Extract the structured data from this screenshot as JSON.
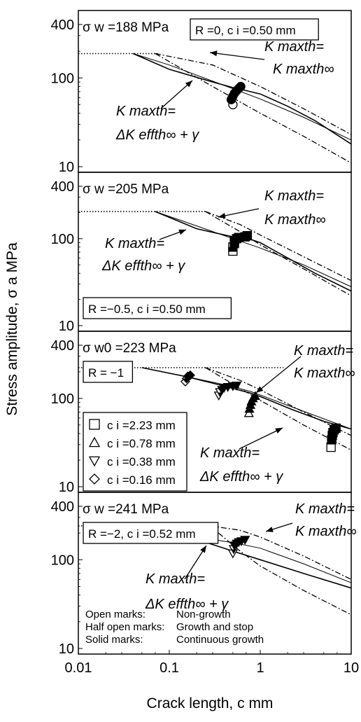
{
  "chart_data": {
    "type": "line",
    "xlabel": "Crack length,  c   mm",
    "ylabel": "Stress amplitude,  σ a   MPa",
    "xscale": "log",
    "yscale": "log",
    "xlim": [
      0.01,
      10
    ],
    "ylim": [
      10,
      400
    ],
    "x_ticks": [
      "0.01",
      "0.1",
      "1",
      "10"
    ],
    "y_ticks": [
      "10",
      "100",
      "400"
    ],
    "line_styles": {
      "solid": "#000000",
      "dash_dot": "#000000",
      "dotted": "#000000"
    },
    "panels": [
      {
        "sigma_w_label": "σ w =188 MPa",
        "condition_label": "R =0, c i =0.50 mm",
        "condition_box": "top-right",
        "annotations": [
          {
            "lines": [
              "K maxth=",
              "K maxth∞"
            ]
          },
          {
            "lines": [
              "K maxth=",
              "ΔK effth∞ + γ"
            ]
          }
        ],
        "sigma_w": 188,
        "curves": {
          "fatigue_limit_dotted": {
            "x": [
              0.01,
              0.075
            ],
            "y": [
              188,
              188
            ]
          },
          "solid": {
            "x": [
              0.04,
              0.1,
              0.3,
              0.5,
              0.7,
              1.0,
              2.0,
              4.0,
              10.0
            ],
            "y": [
              188,
              125,
              90,
              78,
              72,
              66,
              48,
              33,
              18
            ]
          },
          "thin_solid": {
            "x": [
              0.04,
              0.1,
              0.3,
              1.0,
              3.0,
              10.0
            ],
            "y": [
              188,
              140,
              92,
              58,
              36,
              20
            ]
          },
          "kmaxth_inf_dash": {
            "x": [
              0.07,
              0.3,
              1.0,
              3.0,
              10.0
            ],
            "y": [
              188,
              140,
              80,
              45,
              23
            ]
          },
          "dkeff_dashdot": {
            "x": [
              0.07,
              0.3,
              1.0,
              3.0,
              10.0
            ],
            "y": [
              188,
              80,
              40,
              22,
              11
            ]
          }
        },
        "markers": [
          {
            "shape": "circle",
            "fill": "open",
            "x": 0.5,
            "y": 50
          },
          {
            "shape": "circle",
            "fill": "solid",
            "x": 0.48,
            "y": 57
          },
          {
            "shape": "circle",
            "fill": "solid",
            "x": 0.5,
            "y": 62
          },
          {
            "shape": "circle",
            "fill": "solid",
            "x": 0.52,
            "y": 67
          },
          {
            "shape": "circle",
            "fill": "solid",
            "x": 0.55,
            "y": 72
          },
          {
            "shape": "circle",
            "fill": "solid",
            "x": 0.58,
            "y": 76
          },
          {
            "shape": "circle",
            "fill": "solid",
            "x": 0.61,
            "y": 80
          }
        ]
      },
      {
        "sigma_w_label": "σ w =205 MPa",
        "condition_label": "R =−0.5, c i =0.50 mm",
        "condition_box": "bottom-left",
        "annotations": [
          {
            "lines": [
              "K maxth=",
              "K maxth∞"
            ]
          },
          {
            "lines": [
              "K maxth=",
              "ΔK effth∞ + γ"
            ]
          }
        ],
        "sigma_w": 205,
        "curves": {
          "fatigue_limit_dotted": {
            "x": [
              0.01,
              0.25
            ],
            "y": [
              205,
              205
            ]
          },
          "solid": {
            "x": [
              0.07,
              0.2,
              0.5,
              0.7,
              1.0,
              2.0,
              4.0,
              10.0
            ],
            "y": [
              205,
              130,
              105,
              102,
              90,
              60,
              40,
              25
            ]
          },
          "thin_solid": {
            "x": [
              0.07,
              0.2,
              0.5,
              1.0,
              3.0,
              10.0
            ],
            "y": [
              205,
              140,
              100,
              78,
              50,
              28
            ]
          },
          "kmaxth_inf_dash": {
            "x": [
              0.25,
              0.6,
              1.0,
              3.0,
              10.0
            ],
            "y": [
              205,
              145,
              110,
              62,
              33
            ]
          },
          "dkeff_dashdot": {
            "x": [
              0.25,
              0.6,
              1.0,
              3.0,
              10.0
            ],
            "y": [
              205,
              120,
              85,
              45,
              22
            ]
          }
        },
        "markers": [
          {
            "shape": "square",
            "fill": "open",
            "x": 0.5,
            "y": 72
          },
          {
            "shape": "square",
            "fill": "half",
            "x": 0.5,
            "y": 80
          },
          {
            "shape": "square",
            "fill": "half",
            "x": 0.52,
            "y": 88
          },
          {
            "shape": "square",
            "fill": "solid",
            "x": 0.52,
            "y": 95
          },
          {
            "shape": "square",
            "fill": "solid",
            "x": 0.55,
            "y": 100
          },
          {
            "shape": "square",
            "fill": "solid",
            "x": 0.58,
            "y": 103
          },
          {
            "shape": "square",
            "fill": "solid",
            "x": 0.68,
            "y": 105
          },
          {
            "shape": "square",
            "fill": "solid",
            "x": 0.72,
            "y": 108
          }
        ]
      },
      {
        "sigma_w_label": "σ w0 =223 MPa",
        "condition_label": "R = −1",
        "condition_box": "top-left",
        "annotations": [
          {
            "lines": [
              "K maxth=",
              "K maxth∞"
            ]
          },
          {
            "lines": [
              "K maxth=",
              "ΔK effth∞ + γ"
            ]
          }
        ],
        "legend": [
          {
            "shape": "square",
            "label": "c i =2.23 mm"
          },
          {
            "shape": "triangle-up",
            "label": "c i =0.78 mm"
          },
          {
            "shape": "triangle-down",
            "label": "c i =0.38 mm"
          },
          {
            "shape": "diamond",
            "label": "c i =0.16 mm"
          }
        ],
        "sigma_w": 223,
        "curves": {
          "fatigue_limit_dotted": {
            "x": [
              0.01,
              1.8
            ],
            "y": [
              223,
              223
            ]
          },
          "solid": {
            "x": [
              0.05,
              0.16,
              0.38,
              0.78,
              1.0,
              2.23,
              5.0,
              10.0
            ],
            "y": [
              223,
              175,
              140,
              115,
              105,
              75,
              55,
              45
            ]
          },
          "thin_solid": {
            "x": [
              0.05,
              0.16,
              0.38,
              0.78,
              2.23,
              10.0
            ],
            "y": [
              223,
              175,
              145,
              120,
              80,
              45
            ]
          },
          "kmaxth_inf_dash": {
            "x": [
              0.25,
              0.6,
              1.0,
              3.0,
              10.0
            ],
            "y": [
              223,
              160,
              125,
              70,
              38
            ]
          },
          "dkeff_dashdot": {
            "x": [
              0.25,
              0.6,
              1.0,
              3.0,
              10.0
            ],
            "y": [
              223,
              130,
              95,
              50,
              26
            ]
          }
        },
        "markers": [
          {
            "shape": "diamond",
            "fill": "open",
            "x": 0.15,
            "y": 155
          },
          {
            "shape": "diamond",
            "fill": "half",
            "x": 0.155,
            "y": 168
          },
          {
            "shape": "diamond",
            "fill": "solid",
            "x": 0.16,
            "y": 178
          },
          {
            "shape": "diamond",
            "fill": "solid",
            "x": 0.17,
            "y": 183
          },
          {
            "shape": "triangle-down",
            "fill": "open",
            "x": 0.35,
            "y": 108
          },
          {
            "shape": "triangle-down",
            "fill": "half",
            "x": 0.36,
            "y": 118
          },
          {
            "shape": "triangle-down",
            "fill": "solid",
            "x": 0.38,
            "y": 125
          },
          {
            "shape": "triangle-down",
            "fill": "solid",
            "x": 0.4,
            "y": 132
          },
          {
            "shape": "triangle-down",
            "fill": "solid",
            "x": 0.44,
            "y": 135
          },
          {
            "shape": "triangle-down",
            "fill": "solid",
            "x": 0.5,
            "y": 138
          },
          {
            "shape": "triangle-down",
            "fill": "solid",
            "x": 0.55,
            "y": 140
          },
          {
            "shape": "triangle-up",
            "fill": "open",
            "x": 0.75,
            "y": 68
          },
          {
            "shape": "triangle-up",
            "fill": "half",
            "x": 0.76,
            "y": 76
          },
          {
            "shape": "triangle-up",
            "fill": "solid",
            "x": 0.78,
            "y": 84
          },
          {
            "shape": "triangle-up",
            "fill": "solid",
            "x": 0.8,
            "y": 92
          },
          {
            "shape": "triangle-up",
            "fill": "solid",
            "x": 0.83,
            "y": 100
          },
          {
            "shape": "triangle-up",
            "fill": "solid",
            "x": 0.88,
            "y": 106
          },
          {
            "shape": "square",
            "fill": "open",
            "x": 6.0,
            "y": 28
          },
          {
            "shape": "square",
            "fill": "half",
            "x": 6.1,
            "y": 34
          },
          {
            "shape": "square",
            "fill": "half",
            "x": 6.2,
            "y": 38
          },
          {
            "shape": "square",
            "fill": "solid",
            "x": 6.3,
            "y": 41
          },
          {
            "shape": "square",
            "fill": "solid",
            "x": 6.5,
            "y": 44
          },
          {
            "shape": "square",
            "fill": "solid",
            "x": 6.8,
            "y": 46
          }
        ]
      },
      {
        "sigma_w_label": "σ w =241 MPa",
        "condition_label": "R =−2, c i =0.52 mm",
        "condition_box": "top-left",
        "annotations": [
          {
            "lines": [
              "K maxth=",
              "K maxth∞"
            ]
          },
          {
            "lines": [
              "K maxth=",
              "ΔK effth∞ + γ"
            ]
          }
        ],
        "note_rows": [
          {
            "key": "Open marks:",
            "value": "Non-growth"
          },
          {
            "key": "Half open marks:",
            "value": "Growth and stop"
          },
          {
            "key": "Solid marks:",
            "value": "Continuous growth"
          }
        ],
        "sigma_w": 241,
        "curves": {
          "fatigue_limit_dotted": {
            "x": [
              0.01,
              0.28
            ],
            "y": [
              241,
              241
            ]
          },
          "solid": {
            "x": [
              0.07,
              0.2,
              0.5,
              1.0,
              3.0,
              10.0
            ],
            "y": [
              241,
              170,
              125,
              100,
              70,
              48
            ]
          },
          "thin_solid": {
            "x": [
              0.07,
              0.2,
              0.52,
              1.0,
              3.0,
              10.0
            ],
            "y": [
              241,
              180,
              155,
              135,
              90,
              55
            ]
          },
          "kmaxth_inf_dash": {
            "x": [
              0.28,
              0.6,
              1.0,
              3.0,
              10.0
            ],
            "y": [
              241,
              215,
              180,
              110,
              60
            ]
          },
          "dkeff_dashdot": {
            "x": [
              0.28,
              0.6,
              1.0,
              3.0,
              10.0
            ],
            "y": [
              241,
              125,
              85,
              45,
              24
            ]
          }
        },
        "markers": [
          {
            "shape": "triangle-down",
            "fill": "open",
            "x": 0.5,
            "y": 118
          },
          {
            "shape": "triangle-down",
            "fill": "half",
            "x": 0.51,
            "y": 132
          },
          {
            "shape": "triangle-down",
            "fill": "solid",
            "x": 0.52,
            "y": 145
          },
          {
            "shape": "triangle-down",
            "fill": "solid",
            "x": 0.55,
            "y": 152
          },
          {
            "shape": "triangle-down",
            "fill": "solid",
            "x": 0.58,
            "y": 158
          },
          {
            "shape": "triangle-down",
            "fill": "solid",
            "x": 0.62,
            "y": 162
          },
          {
            "shape": "triangle-down",
            "fill": "solid",
            "x": 0.68,
            "y": 168
          }
        ]
      }
    ]
  }
}
